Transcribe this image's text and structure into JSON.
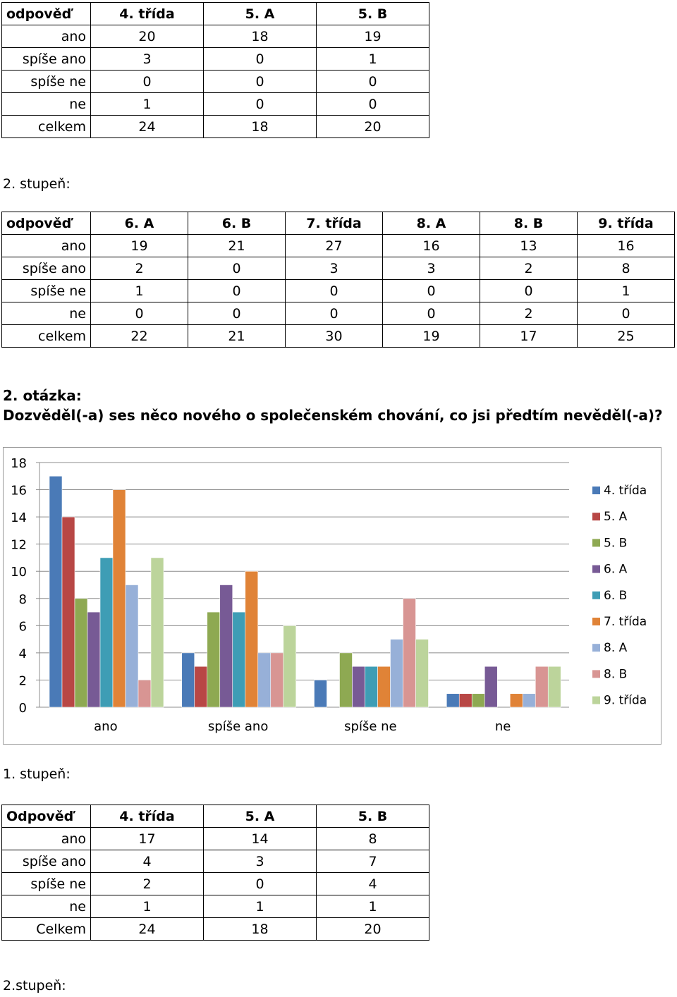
{
  "table1": {
    "headers": [
      "odpověď",
      "4. třída",
      "5. A",
      "5. B"
    ],
    "rows": [
      [
        "ano",
        "20",
        "18",
        "19"
      ],
      [
        "spíše ano",
        "3",
        "0",
        "1"
      ],
      [
        "spíše ne",
        "0",
        "0",
        "0"
      ],
      [
        "ne",
        "1",
        "0",
        "0"
      ],
      [
        "celkem",
        "24",
        "18",
        "20"
      ]
    ]
  },
  "caption_stupen2_a": "2. stupeň:",
  "table2": {
    "headers": [
      "odpověď",
      "6. A",
      "6. B",
      "7. třída",
      "8. A",
      "8. B",
      "9. třída"
    ],
    "rows": [
      [
        "ano",
        "19",
        "21",
        "27",
        "16",
        "13",
        "16"
      ],
      [
        "spíše ano",
        "2",
        "0",
        "3",
        "3",
        "2",
        "8"
      ],
      [
        "spíše ne",
        "1",
        "0",
        "0",
        "0",
        "0",
        "1"
      ],
      [
        "ne",
        "0",
        "0",
        "0",
        "0",
        "2",
        "0"
      ],
      [
        "celkem",
        "22",
        "21",
        "30",
        "19",
        "17",
        "25"
      ]
    ]
  },
  "question": {
    "number": "2. otázka:",
    "text": "Dozvěděl(-a) ses něco nového o společenském chování, co jsi předtím nevěděl(-a)?"
  },
  "chart_data": {
    "type": "bar",
    "categories": [
      "ano",
      "spíše ano",
      "spíše ne",
      "ne"
    ],
    "ylim": [
      0,
      18
    ],
    "yticks": [
      "0",
      "2",
      "4",
      "6",
      "8",
      "10",
      "12",
      "14",
      "16",
      "18"
    ],
    "grid": true,
    "legend_position": "right",
    "series": [
      {
        "name": "4. třída",
        "color": "#4a7ab7",
        "values": [
          17,
          4,
          2,
          1
        ]
      },
      {
        "name": "5. A",
        "color": "#b84745",
        "values": [
          14,
          3,
          0,
          1
        ]
      },
      {
        "name": "5. B",
        "color": "#8ea952",
        "values": [
          8,
          7,
          4,
          1
        ]
      },
      {
        "name": "6. A",
        "color": "#775a95",
        "values": [
          7,
          9,
          3,
          3
        ]
      },
      {
        "name": "6. B",
        "color": "#3e9db5",
        "values": [
          11,
          7,
          3,
          0
        ]
      },
      {
        "name": "7. třída",
        "color": "#e08337",
        "values": [
          16,
          10,
          3,
          1
        ]
      },
      {
        "name": "8. A",
        "color": "#97b0d8",
        "values": [
          9,
          4,
          5,
          1
        ]
      },
      {
        "name": "8. B",
        "color": "#d89593",
        "values": [
          2,
          4,
          8,
          3
        ]
      },
      {
        "name": "9. třída",
        "color": "#bcd49b",
        "values": [
          11,
          6,
          5,
          3
        ]
      }
    ]
  },
  "caption_stupen1": "1. stupeň:",
  "table3": {
    "headers": [
      "Odpověď",
      "4. třída",
      "5. A",
      "5. B"
    ],
    "rows": [
      [
        "ano",
        "17",
        "14",
        "8"
      ],
      [
        "spíše ano",
        "4",
        "3",
        "7"
      ],
      [
        "spíše ne",
        "2",
        "0",
        "4"
      ],
      [
        "ne",
        "1",
        "1",
        "1"
      ],
      [
        "Celkem",
        "24",
        "18",
        "20"
      ]
    ]
  },
  "caption_stupen2_b": "2.stupeň:"
}
